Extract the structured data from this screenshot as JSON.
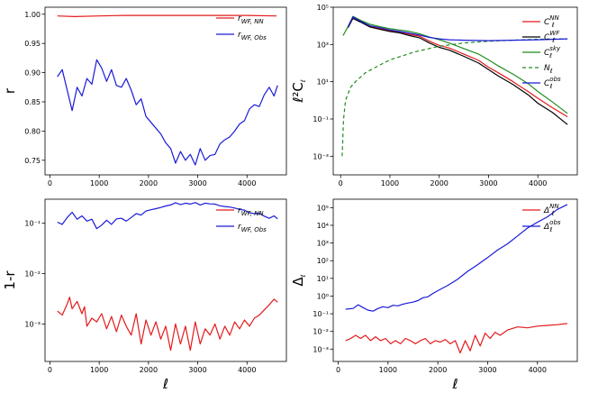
{
  "chart_data": [
    {
      "id": "tl",
      "type": "line",
      "ylabel": "r",
      "xlabel": "",
      "yscale": "linear",
      "xlim": [
        -100,
        4800
      ],
      "ylim": [
        0.725,
        1.012
      ],
      "xticks": [
        0,
        1000,
        2000,
        3000,
        4000
      ],
      "xtick_labels": [
        "0",
        "1000",
        "2000",
        "3000",
        "4000"
      ],
      "yticks": [
        0.75,
        0.8,
        0.85,
        0.9,
        0.95,
        1.0
      ],
      "ytick_labels": [
        "0.75",
        "0.80",
        "0.85",
        "0.90",
        "0.95",
        "1.00"
      ],
      "legend": "upper right",
      "series": [
        {
          "name": "r_{WF,NN}",
          "label": "r",
          "sub": "WF, NN",
          "sup": "",
          "color": "#e41a1c",
          "dash": "",
          "x": [
            150,
            500,
            1000,
            1500,
            2000,
            2500,
            3000,
            3500,
            4000,
            4600
          ],
          "y": [
            0.997,
            0.996,
            0.997,
            0.998,
            0.998,
            0.998,
            0.998,
            0.998,
            0.998,
            0.997
          ]
        },
        {
          "name": "r_{WF,Obs}",
          "label": "r",
          "sub": "WF, Obs",
          "sup": "",
          "color": "#1a1ad9",
          "dash": "",
          "x": [
            150,
            250,
            350,
            450,
            550,
            650,
            750,
            850,
            950,
            1050,
            1150,
            1250,
            1350,
            1450,
            1550,
            1650,
            1750,
            1850,
            1950,
            2050,
            2150,
            2250,
            2350,
            2450,
            2550,
            2650,
            2750,
            2850,
            2950,
            3050,
            3150,
            3250,
            3350,
            3450,
            3550,
            3650,
            3750,
            3850,
            3950,
            4050,
            4150,
            4250,
            4350,
            4450,
            4550,
            4620
          ],
          "y": [
            0.893,
            0.905,
            0.87,
            0.835,
            0.875,
            0.86,
            0.89,
            0.88,
            0.922,
            0.908,
            0.885,
            0.905,
            0.878,
            0.875,
            0.89,
            0.87,
            0.845,
            0.855,
            0.825,
            0.815,
            0.805,
            0.795,
            0.78,
            0.77,
            0.745,
            0.765,
            0.75,
            0.76,
            0.742,
            0.77,
            0.75,
            0.758,
            0.76,
            0.778,
            0.785,
            0.79,
            0.8,
            0.812,
            0.818,
            0.838,
            0.845,
            0.842,
            0.862,
            0.875,
            0.86,
            0.878
          ]
        }
      ]
    },
    {
      "id": "tr",
      "type": "line",
      "ylabel": "ℓ²C_ℓ",
      "xlabel": "",
      "yscale": "log",
      "xlim": [
        -150,
        4800
      ],
      "ylim": [
        0.0001,
        100000
      ],
      "xticks": [
        0,
        1000,
        2000,
        3000,
        4000
      ],
      "xtick_labels": [
        "0",
        "1000",
        "2000",
        "3000",
        "4000"
      ],
      "yticks": [
        0.001,
        0.1,
        10,
        1000,
        100000
      ],
      "ytick_labels": [
        "10⁻³",
        "10⁻¹",
        "10¹",
        "10³",
        "10⁵"
      ],
      "legend": "right",
      "series": [
        {
          "name": "C_ℓ^{NN}",
          "label": "C",
          "sub": "ℓ",
          "sup": "NN",
          "color": "#e41a1c",
          "dash": "",
          "x": [
            150,
            250,
            400,
            600,
            800,
            1000,
            1200,
            1400,
            1600,
            1800,
            2000,
            2200,
            2500,
            2800,
            3000,
            3200,
            3500,
            3800,
            4000,
            4300,
            4600
          ],
          "y": [
            8000,
            30000,
            18000,
            9000,
            7000,
            5500,
            4800,
            3500,
            2800,
            1500,
            900,
            650,
            300,
            140,
            60,
            30,
            10,
            3,
            1.3,
            0.4,
            0.13
          ]
        },
        {
          "name": "C_ℓ^{WF}",
          "label": "C",
          "sub": "ℓ",
          "sup": "WF",
          "color": "#000000",
          "dash": "",
          "x": [
            150,
            250,
            400,
            600,
            800,
            1000,
            1200,
            1400,
            1600,
            1800,
            2000,
            2200,
            2500,
            2800,
            3000,
            3200,
            3500,
            3800,
            4000,
            4300,
            4600
          ],
          "y": [
            8000,
            25000,
            16000,
            8500,
            6500,
            5000,
            4200,
            3000,
            2300,
            1200,
            700,
            500,
            230,
            100,
            45,
            20,
            7,
            2,
            0.7,
            0.22,
            0.05
          ]
        },
        {
          "name": "C_ℓ^{sky}",
          "label": "C",
          "sub": "ℓ",
          "sup": "sky",
          "color": "#1e8c1e",
          "dash": "",
          "x": [
            50,
            150,
            250,
            400,
            600,
            800,
            1000,
            1200,
            1400,
            1600,
            1800,
            2000,
            2200,
            2500,
            2800,
            3000,
            3200,
            3500,
            3800,
            4000,
            4300,
            4600
          ],
          "y": [
            3000,
            9000,
            32000,
            20000,
            12000,
            9000,
            7000,
            6000,
            5000,
            3800,
            2500,
            1800,
            1200,
            600,
            300,
            150,
            70,
            25,
            8,
            3,
            0.8,
            0.2
          ]
        },
        {
          "name": "N_ℓ",
          "label": "N",
          "sub": "ℓ",
          "sup": "",
          "color": "#1e8c1e",
          "dash": "4,3",
          "x": [
            30,
            60,
            100,
            200,
            300,
            500,
            800,
            1000,
            1500,
            2000,
            2500,
            3000,
            3500,
            4000,
            4600
          ],
          "y": [
            0.001,
            0.1,
            1,
            5,
            10,
            30,
            80,
            150,
            400,
            800,
            1200,
            1500,
            1700,
            1900,
            2000
          ]
        },
        {
          "name": "C_ℓ^{obs}",
          "label": "C",
          "sub": "ℓ",
          "sup": "obs",
          "color": "#1a1ad9",
          "dash": "",
          "x": [
            150,
            250,
            400,
            600,
            800,
            1000,
            1200,
            1400,
            1600,
            1800,
            2000,
            2200,
            2500,
            3000,
            3500,
            4000,
            4300,
            4600
          ],
          "y": [
            9000,
            30000,
            18000,
            10000,
            8000,
            6000,
            5000,
            4000,
            3200,
            2400,
            2000,
            1800,
            1700,
            1600,
            1700,
            1800,
            1900,
            2000
          ]
        }
      ]
    },
    {
      "id": "bl",
      "type": "line",
      "ylabel": "1-r",
      "xlabel": "ℓ",
      "yscale": "log",
      "xlim": [
        -100,
        4800
      ],
      "ylim": [
        0.00018,
        0.3
      ],
      "xticks": [
        0,
        1000,
        2000,
        3000,
        4000
      ],
      "xtick_labels": [
        "0",
        "1000",
        "2000",
        "3000",
        "4000"
      ],
      "yticks": [
        0.001,
        0.01,
        0.1
      ],
      "ytick_labels": [
        "10⁻³",
        "10⁻²",
        "10⁻¹"
      ],
      "legend": "upper right",
      "series": [
        {
          "name": "r_{WF,NN}",
          "label": "r",
          "sub": "WF, NN",
          "sup": "",
          "color": "#e41a1c",
          "dash": "",
          "x": [
            150,
            250,
            350,
            400,
            450,
            550,
            650,
            700,
            750,
            850,
            950,
            1050,
            1150,
            1250,
            1350,
            1450,
            1550,
            1650,
            1750,
            1850,
            1950,
            2050,
            2150,
            2250,
            2350,
            2450,
            2550,
            2650,
            2750,
            2850,
            2950,
            3050,
            3150,
            3250,
            3350,
            3450,
            3550,
            3650,
            3750,
            3850,
            3950,
            4050,
            4150,
            4250,
            4350,
            4450,
            4550,
            4620
          ],
          "y": [
            0.0018,
            0.0015,
            0.0025,
            0.0034,
            0.002,
            0.0028,
            0.0016,
            0.0022,
            0.0009,
            0.0013,
            0.0011,
            0.0016,
            0.0008,
            0.0014,
            0.0007,
            0.0015,
            0.0009,
            0.0006,
            0.0016,
            0.0004,
            0.0012,
            0.0006,
            0.0011,
            0.0005,
            0.0009,
            0.0003,
            0.001,
            0.0004,
            0.0009,
            0.0003,
            0.0011,
            0.0004,
            0.0008,
            0.0006,
            0.001,
            0.0005,
            0.0009,
            0.0006,
            0.0011,
            0.0008,
            0.0012,
            0.0009,
            0.0013,
            0.0015,
            0.0019,
            0.0024,
            0.0031,
            0.0027
          ]
        },
        {
          "name": "r_{WF,Obs}",
          "label": "r",
          "sub": "WF, Obs",
          "sup": "",
          "color": "#1a1ad9",
          "dash": "",
          "x": [
            150,
            250,
            350,
            450,
            550,
            650,
            750,
            850,
            950,
            1050,
            1150,
            1250,
            1350,
            1450,
            1550,
            1650,
            1750,
            1850,
            1950,
            2050,
            2150,
            2250,
            2350,
            2450,
            2550,
            2650,
            2750,
            2850,
            2950,
            3050,
            3150,
            3250,
            3350,
            3450,
            3550,
            3650,
            3750,
            3850,
            3950,
            4050,
            4150,
            4250,
            4350,
            4450,
            4550,
            4620
          ],
          "y": [
            0.105,
            0.095,
            0.13,
            0.165,
            0.12,
            0.14,
            0.11,
            0.12,
            0.078,
            0.092,
            0.115,
            0.095,
            0.122,
            0.125,
            0.11,
            0.13,
            0.155,
            0.145,
            0.175,
            0.185,
            0.195,
            0.205,
            0.22,
            0.23,
            0.255,
            0.235,
            0.25,
            0.24,
            0.258,
            0.23,
            0.25,
            0.242,
            0.24,
            0.222,
            0.215,
            0.21,
            0.2,
            0.188,
            0.182,
            0.162,
            0.155,
            0.158,
            0.138,
            0.125,
            0.14,
            0.122
          ]
        }
      ]
    },
    {
      "id": "br",
      "type": "line",
      "ylabel": "Δ_ℓ",
      "xlabel": "ℓ",
      "yscale": "log",
      "xlim": [
        -100,
        4800
      ],
      "ylim": [
        0.0002,
        300000
      ],
      "xticks": [
        0,
        1000,
        2000,
        3000,
        4000
      ],
      "xtick_labels": [
        "0",
        "1000",
        "2000",
        "3000",
        "4000"
      ],
      "yticks": [
        0.001,
        0.01,
        0.1,
        1,
        10,
        100,
        1000,
        10000,
        100000
      ],
      "ytick_labels": [
        "10⁻³",
        "10⁻²",
        "10⁻¹",
        "10⁰",
        "10¹",
        "10²",
        "10³",
        "10⁴",
        "10⁵"
      ],
      "legend": "upper right",
      "series": [
        {
          "name": "Δ_ℓ^{NN}",
          "label": "Δ",
          "sub": "ℓ",
          "sup": "NN",
          "color": "#e41a1c",
          "dash": "",
          "x": [
            150,
            250,
            350,
            450,
            550,
            650,
            750,
            850,
            950,
            1050,
            1150,
            1250,
            1350,
            1450,
            1550,
            1650,
            1750,
            1850,
            1950,
            2050,
            2150,
            2250,
            2350,
            2450,
            2550,
            2650,
            2750,
            2850,
            2950,
            3050,
            3150,
            3250,
            3400,
            3600,
            3800,
            4000,
            4200,
            4400,
            4600
          ],
          "y": [
            0.003,
            0.004,
            0.006,
            0.004,
            0.006,
            0.003,
            0.005,
            0.003,
            0.004,
            0.002,
            0.003,
            0.002,
            0.004,
            0.003,
            0.002,
            0.003,
            0.004,
            0.002,
            0.003,
            0.0025,
            0.0035,
            0.002,
            0.003,
            0.0006,
            0.003,
            0.0008,
            0.006,
            0.0015,
            0.008,
            0.004,
            0.009,
            0.006,
            0.012,
            0.018,
            0.016,
            0.02,
            0.022,
            0.024,
            0.028
          ]
        },
        {
          "name": "Δ_ℓ^{obs}",
          "label": "Δ",
          "sub": "ℓ",
          "sup": "obs",
          "color": "#1a1ad9",
          "dash": "",
          "x": [
            150,
            300,
            400,
            500,
            600,
            700,
            800,
            900,
            1000,
            1100,
            1200,
            1300,
            1400,
            1500,
            1600,
            1700,
            1800,
            1900,
            2000,
            2200,
            2400,
            2600,
            2800,
            3000,
            3200,
            3400,
            3600,
            3800,
            4000,
            4200,
            4400,
            4600
          ],
          "y": [
            0.18,
            0.2,
            0.32,
            0.22,
            0.16,
            0.14,
            0.2,
            0.25,
            0.22,
            0.3,
            0.28,
            0.35,
            0.4,
            0.45,
            0.55,
            0.8,
            0.9,
            1.4,
            2,
            4,
            9,
            25,
            60,
            150,
            400,
            900,
            2500,
            7000,
            15000,
            30000,
            80000,
            150000
          ]
        }
      ]
    }
  ]
}
